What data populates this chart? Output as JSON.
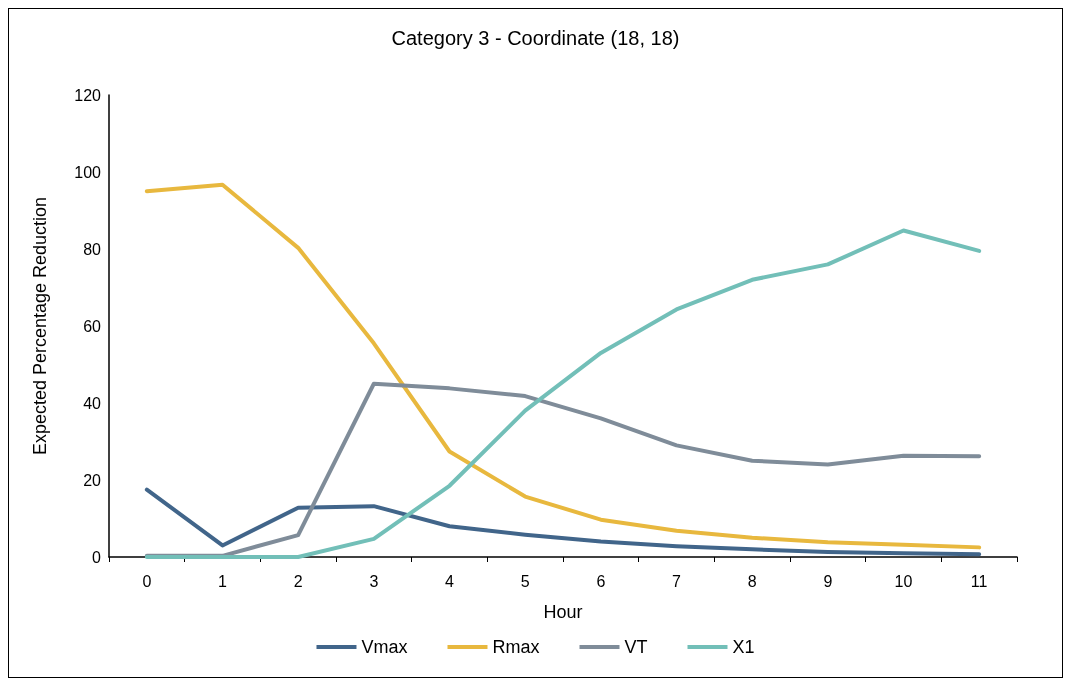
{
  "chart_data": {
    "type": "line",
    "title": "Category 3 - Coordinate (18, 18)",
    "xlabel": "Hour",
    "ylabel": "Expected Percentage Reduction",
    "categories": [
      "0",
      "1",
      "2",
      "3",
      "4",
      "5",
      "6",
      "7",
      "8",
      "9",
      "10",
      "11"
    ],
    "series": [
      {
        "name": "Vmax",
        "color": "#41658a",
        "values": [
          17.5,
          3,
          12.8,
          13.2,
          8,
          5.8,
          4,
          2.8,
          2,
          1.3,
          1,
          0.7
        ]
      },
      {
        "name": "Rmax",
        "color": "#e8b83e",
        "values": [
          95,
          96.7,
          80.3,
          55.5,
          27.4,
          15.7,
          9.7,
          6.8,
          5,
          3.8,
          3.2,
          2.5
        ]
      },
      {
        "name": "VT",
        "color": "#7f8c99",
        "values": [
          0.3,
          0.3,
          5.7,
          45,
          43.8,
          41.8,
          36,
          29,
          25,
          24,
          26.3,
          26.2
        ]
      },
      {
        "name": "X1",
        "color": "#72bfb8",
        "values": [
          0,
          0,
          0,
          4.7,
          18.5,
          38,
          53,
          64.3,
          72,
          76,
          84.8,
          79.5
        ]
      }
    ],
    "ylim": [
      0,
      120
    ],
    "yticks": [
      0,
      20,
      40,
      60,
      80,
      100,
      120
    ],
    "grid": false,
    "legend": "bottom",
    "marker": "none",
    "line_style": "solid"
  }
}
